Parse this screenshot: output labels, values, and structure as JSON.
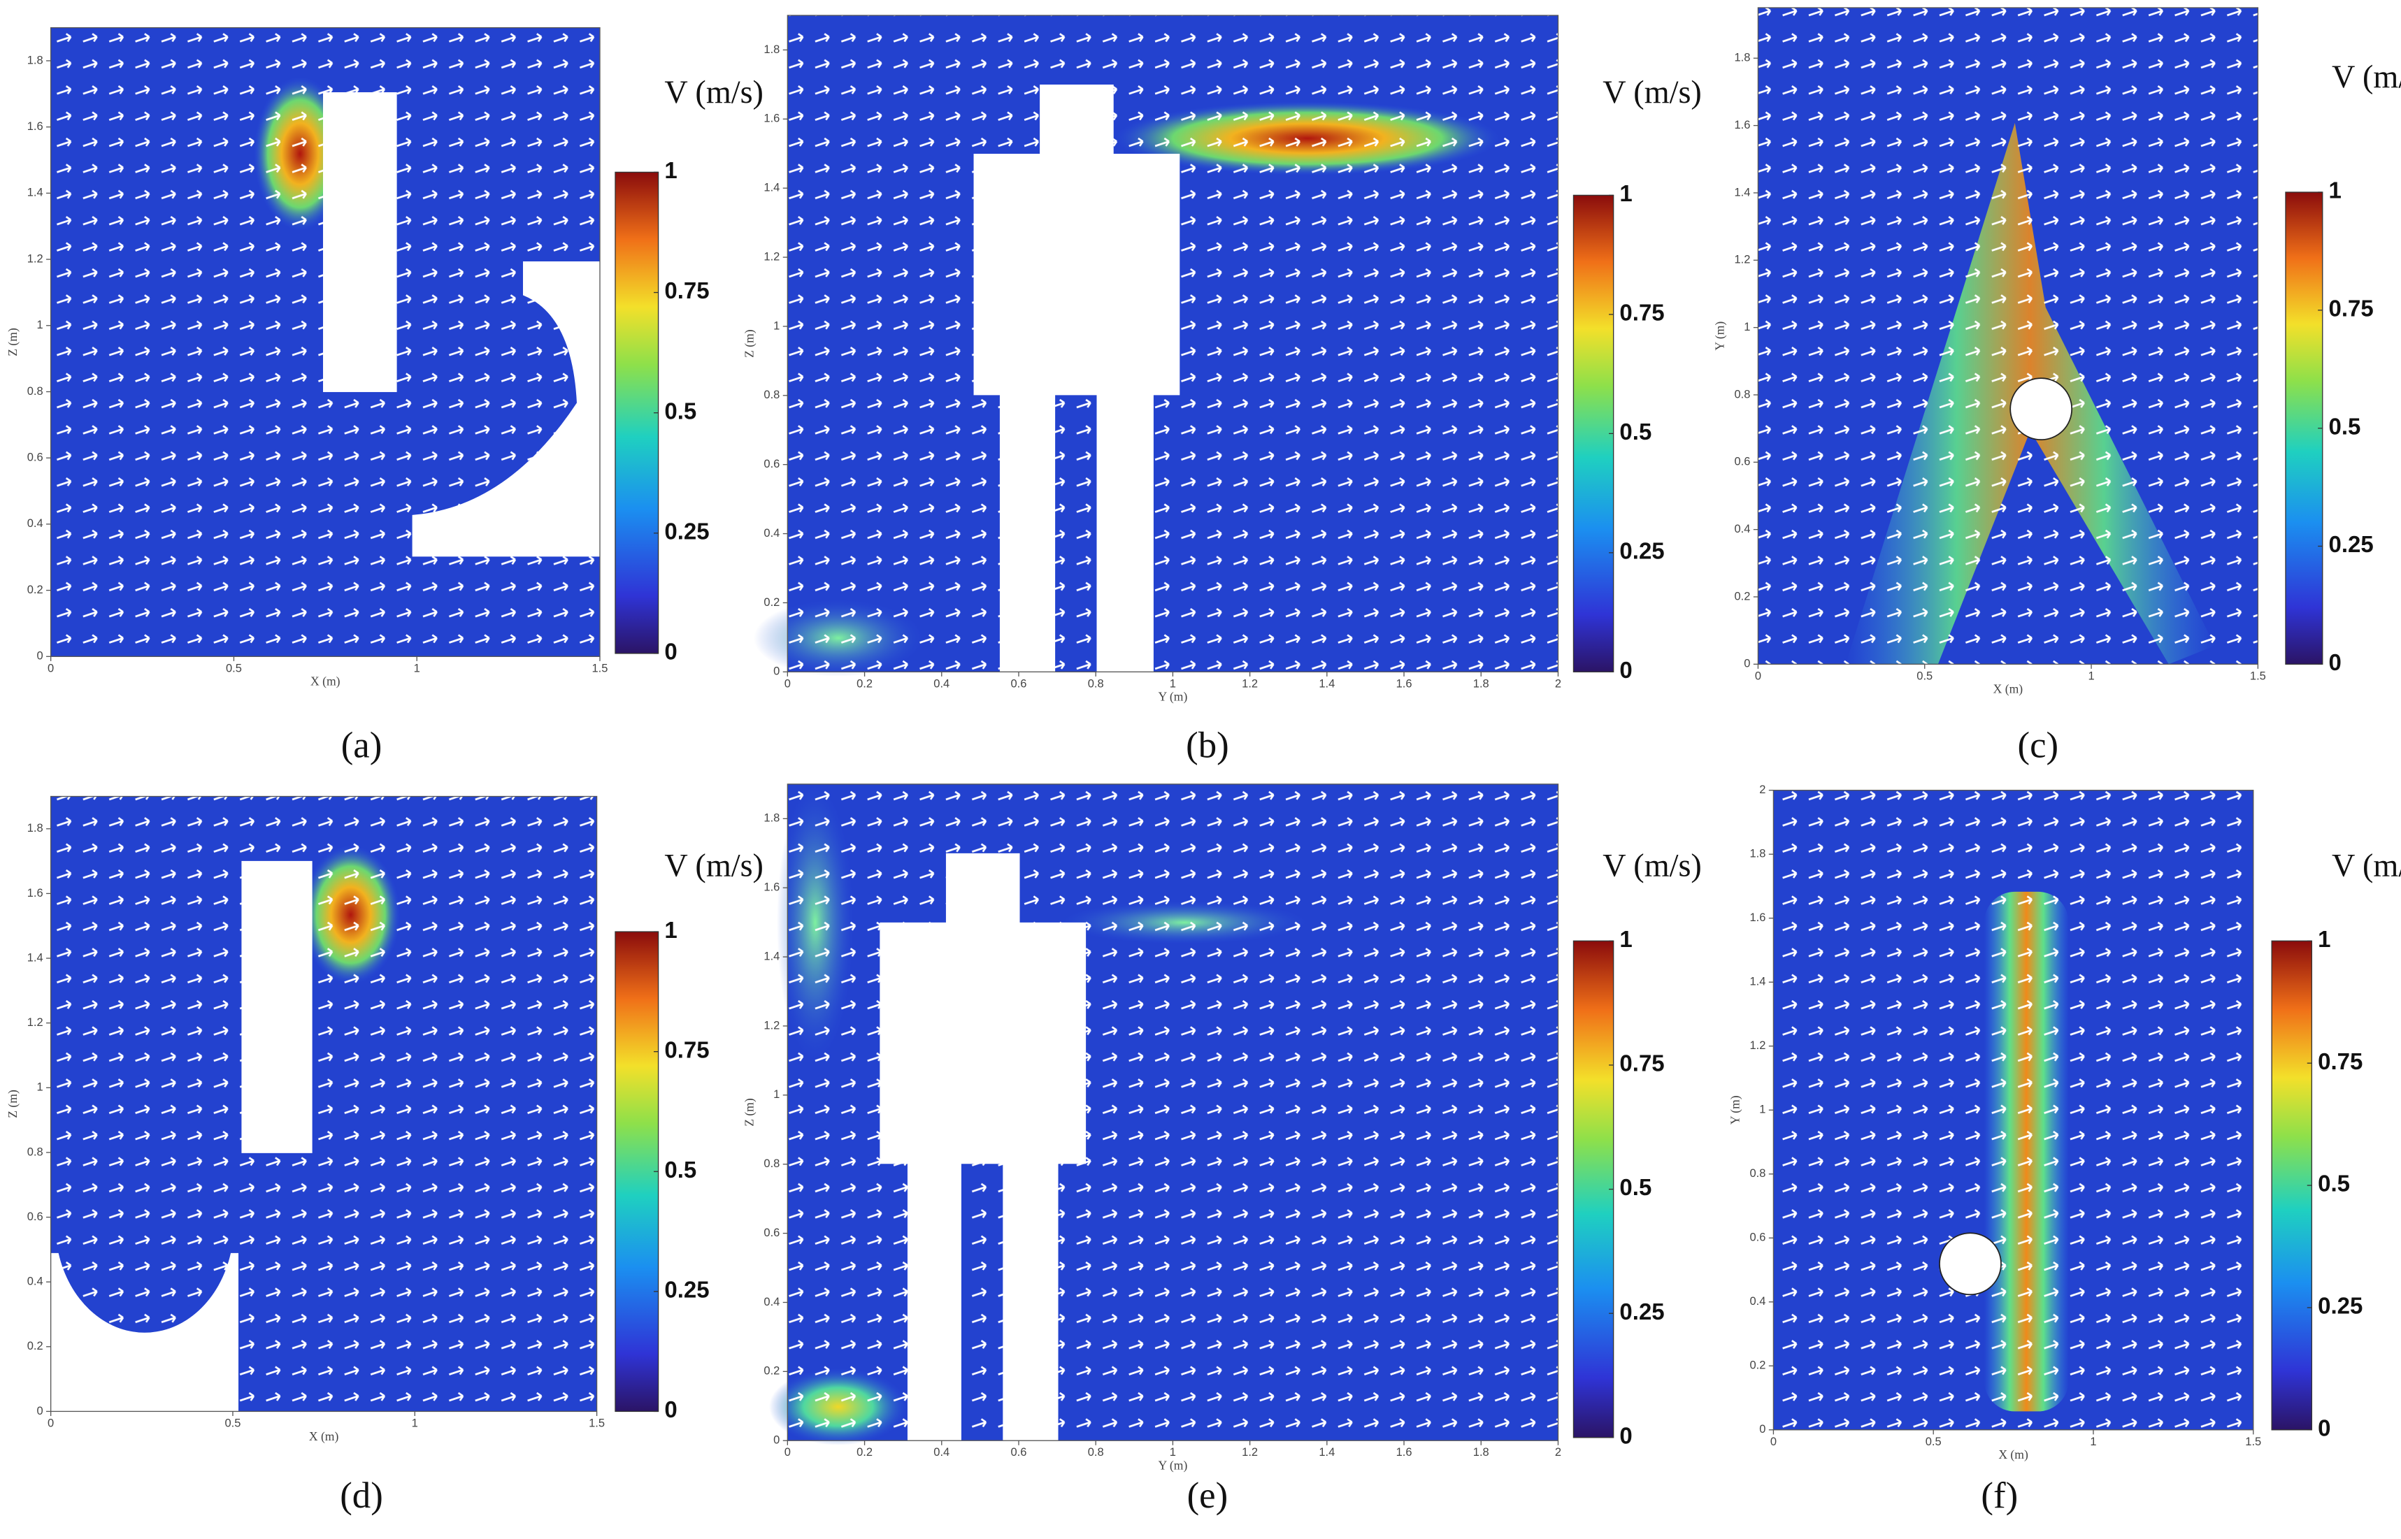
{
  "chart_data": [
    {
      "type": "vector-field",
      "xlabel": "X (m)",
      "ylabel": "Z (m)",
      "xlim": [
        0,
        1.5
      ],
      "ylim": [
        0,
        1.9
      ],
      "xticks": [
        0,
        0.5,
        1,
        1.5
      ],
      "yticks": [
        0,
        0.2,
        0.4,
        0.6,
        0.8,
        1,
        1.2,
        1.4,
        1.6,
        1.8
      ],
      "colorbar": {
        "label": "V (m/s)",
        "lim": [
          0,
          1
        ],
        "ticks": [
          0,
          0.25,
          0.5,
          0.75,
          1
        ]
      },
      "panel_label": "(a)"
    },
    {
      "type": "vector-field",
      "xlabel": "Y (m)",
      "ylabel": "Z (m)",
      "xlim": [
        0,
        2
      ],
      "ylim": [
        0,
        1.9
      ],
      "xticks": [
        0,
        0.2,
        0.4,
        0.6,
        0.8,
        1,
        1.2,
        1.4,
        1.6,
        1.8,
        2
      ],
      "yticks": [
        0,
        0.2,
        0.4,
        0.6,
        0.8,
        1,
        1.2,
        1.4,
        1.6,
        1.8
      ],
      "colorbar": {
        "label": "V (m/s)",
        "lim": [
          0,
          1
        ],
        "ticks": [
          0,
          0.25,
          0.5,
          0.75,
          1
        ]
      },
      "panel_label": "(b)"
    },
    {
      "type": "vector-field",
      "xlabel": "X (m)",
      "ylabel": "Y (m)",
      "xlim": [
        0,
        1.5
      ],
      "ylim": [
        0,
        1.95
      ],
      "xticks": [
        0,
        0.5,
        1,
        1.5
      ],
      "yticks": [
        0,
        0.2,
        0.4,
        0.6,
        0.8,
        1,
        1.2,
        1.4,
        1.6,
        1.8
      ],
      "colorbar": {
        "label": "V (m/s)",
        "lim": [
          0,
          1
        ],
        "ticks": [
          0,
          0.25,
          0.5,
          0.75,
          1
        ]
      },
      "panel_label": "(c)"
    },
    {
      "type": "vector-field",
      "xlabel": "X (m)",
      "ylabel": "Z (m)",
      "xlim": [
        0,
        1.5
      ],
      "ylim": [
        0,
        1.9
      ],
      "xticks": [
        0,
        0.5,
        1,
        1.5
      ],
      "yticks": [
        0,
        0.2,
        0.4,
        0.6,
        0.8,
        1,
        1.2,
        1.4,
        1.6,
        1.8
      ],
      "colorbar": {
        "label": "V (m/s)",
        "lim": [
          0,
          1
        ],
        "ticks": [
          0,
          0.25,
          0.5,
          0.75,
          1
        ]
      },
      "panel_label": "(d)"
    },
    {
      "type": "vector-field",
      "xlabel": "Y (m)",
      "ylabel": "Z (m)",
      "xlim": [
        0,
        2
      ],
      "ylim": [
        0,
        1.9
      ],
      "xticks": [
        0,
        0.2,
        0.4,
        0.6,
        0.8,
        1,
        1.2,
        1.4,
        1.6,
        1.8,
        2
      ],
      "yticks": [
        0,
        0.2,
        0.4,
        0.6,
        0.8,
        1,
        1.2,
        1.4,
        1.6,
        1.8
      ],
      "colorbar": {
        "label": "V (m/s)",
        "lim": [
          0,
          1
        ],
        "ticks": [
          0,
          0.25,
          0.5,
          0.75,
          1
        ]
      },
      "panel_label": "(e)"
    },
    {
      "type": "vector-field",
      "xlabel": "X (m)",
      "ylabel": "Y (m)",
      "xlim": [
        0,
        1.5
      ],
      "ylim": [
        0,
        2
      ],
      "xticks": [
        0,
        0.5,
        1,
        1.5
      ],
      "yticks": [
        0,
        0.2,
        0.4,
        0.6,
        0.8,
        1,
        1.2,
        1.4,
        1.6,
        1.8,
        2
      ],
      "colorbar": {
        "label": "V (m/s)",
        "lim": [
          0,
          1
        ],
        "ticks": [
          0,
          0.25,
          0.5,
          0.75,
          1
        ]
      },
      "panel_label": "(f)"
    }
  ]
}
